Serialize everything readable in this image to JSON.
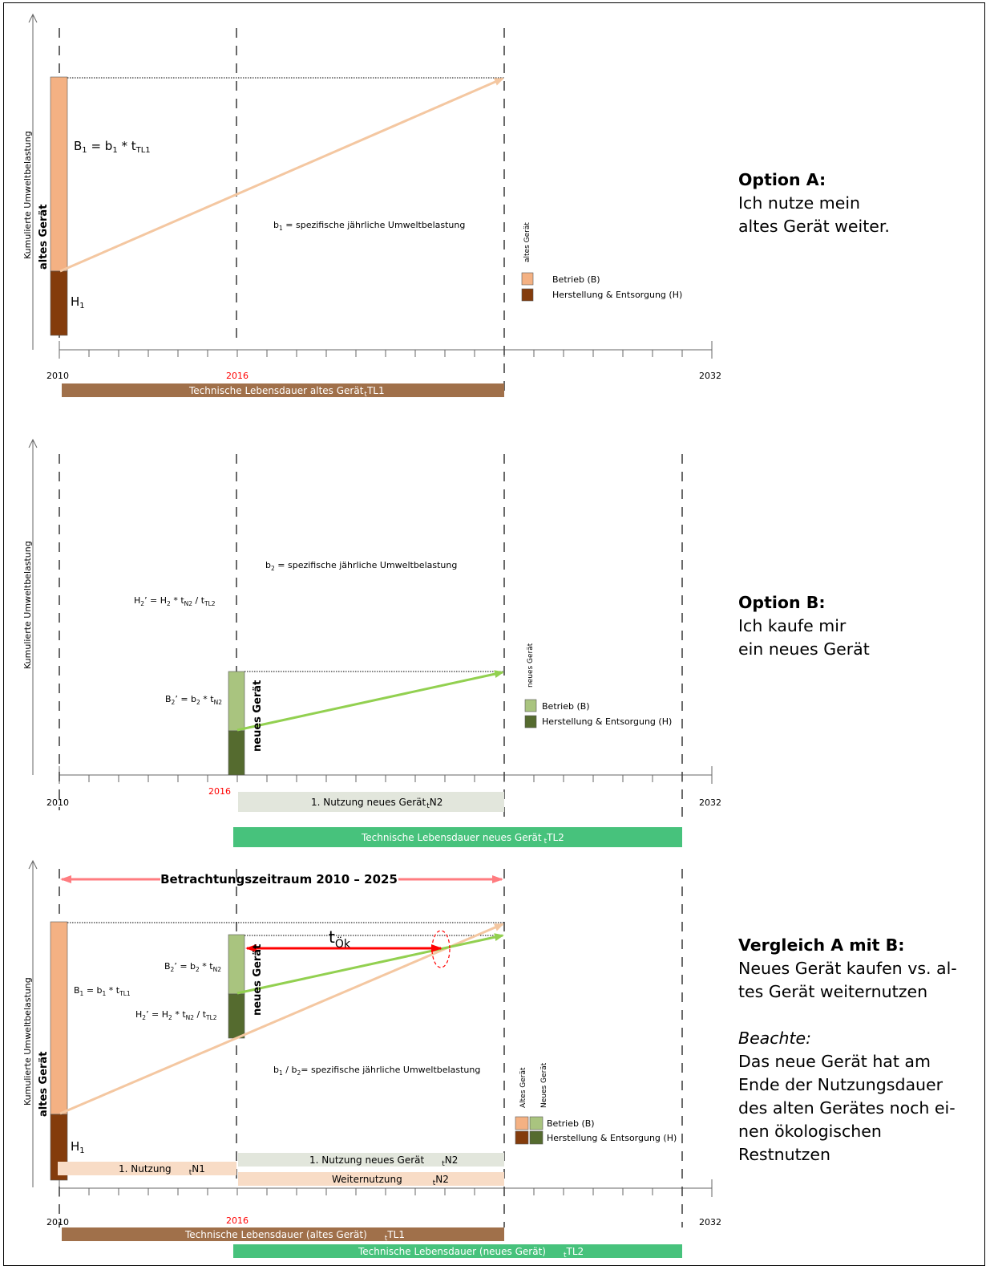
{
  "panel_a": {
    "y_axis_label": "Kumulierte Umweltbelastung",
    "device_label": "altes Gerät",
    "B1": [
      "B",
      "1",
      " = b",
      "1",
      " * t",
      "TL1"
    ],
    "H1": [
      "H",
      "1"
    ],
    "b1_text": [
      "b",
      "1",
      " = spezifische jährliche Umweltbelastung"
    ],
    "legend_header": "altes Gerät",
    "legend_betrieb": "Betrieb (B)",
    "legend_herstellung": "Herstellung & Entsorgung (H)",
    "year_start": "2010",
    "year_mid": "2016",
    "year_end": "2032",
    "bar_lifetime": [
      "Technische Lebensdauer altes Gerät",
      "t",
      "TL1"
    ],
    "side_title": "Option A:",
    "side_lines": [
      "Ich nutze mein",
      "altes Gerät weiter."
    ]
  },
  "panel_b": {
    "y_axis_label": "Kumulierte Umweltbelastung",
    "device_label": "neues Gerät",
    "H2": [
      "H",
      "2",
      "’ = H",
      "2",
      " * t",
      "N2",
      " / t",
      "TL2"
    ],
    "B2": [
      "B",
      "2",
      "’ = b",
      "2",
      " * t",
      "N2"
    ],
    "b2_text": [
      "b",
      "2",
      " = spezifische jährliche Umweltbelastung"
    ],
    "legend_header": "neues Gerät",
    "legend_betrieb": "Betrieb (B)",
    "legend_herstellung": "Herstellung & Entsorgung (H)",
    "year_start": "2010",
    "year_mid": "2016",
    "year_end": "2032",
    "bar_use": [
      "1. Nutzung neues Gerät",
      "t",
      "N2"
    ],
    "bar_lifetime": [
      "Technische Lebensdauer neues Gerät",
      "t",
      "TL2"
    ],
    "side_title": "Option B:",
    "side_lines": [
      "Ich kaufe mir",
      "ein neues Gerät"
    ]
  },
  "panel_c": {
    "y_axis_label": "Kumulierte Umweltbelastung",
    "old_device_label": "altes Gerät",
    "new_device_label": "neues Gerät",
    "period": "Betrachtungszeitraum 2010 – 2025",
    "t_oek": [
      "t",
      "Ök"
    ],
    "B2": [
      "B",
      "2",
      "’ = b",
      "2",
      " * t",
      "N2"
    ],
    "H2": [
      "H",
      "2",
      "’ = H",
      "2",
      " * t",
      "N2",
      " / t",
      "TL2"
    ],
    "B1": [
      "B",
      "1",
      " = b",
      "1",
      " * t",
      "TL1"
    ],
    "H1": [
      "H",
      "1"
    ],
    "b_text": [
      "b",
      "1",
      " / b",
      "2",
      "= spezifische jährliche Umweltbelastung"
    ],
    "legend_header_old": "Altes Gerät",
    "legend_header_new": "Neues Gerät",
    "legend_betrieb": "Betrieb (B)",
    "legend_herstellung": "Herstellung & Entsorgung (H)",
    "bar_first_use": [
      "1. Nutzung",
      "t",
      "N1"
    ],
    "bar_new_use": [
      "1. Nutzung neues Gerät",
      "t",
      "N2"
    ],
    "bar_continued": [
      "Weiternutzung",
      "t",
      "N2"
    ],
    "bar_lifetime_old": [
      "Technische Lebensdauer (altes Gerät)",
      "t",
      "TL1"
    ],
    "bar_lifetime_new": [
      "Technische Lebensdauer (neues Gerät)",
      "t",
      "TL2"
    ],
    "year_start": "2010",
    "year_mid": "2016",
    "year_end": "2032",
    "side_title": "Vergleich A mit B:",
    "side_lines": [
      "Neues Gerät kaufen vs. al-",
      "tes Gerät weiternutzen"
    ],
    "side_note_title": "Beachte:",
    "side_note_lines": [
      "Das neue Gerät hat am",
      "Ende der Nutzungsdauer",
      "des alten Gerätes noch ei-",
      "nen ökologischen",
      "Restnutzen"
    ]
  },
  "colors": {
    "betrieb_old": "#f4b183",
    "herstellung_old": "#843c0c",
    "betrieb_new": "#a9c47f",
    "herstellung_new": "#556b2f",
    "arrow_old": "#f4c7a1",
    "arrow_new": "#92d050",
    "lifetime_old_bar": "#a0704a",
    "lifetime_new_bar": "#47c27c",
    "use_new_bar": "#e2e6dc",
    "use_old_bar": "#f8dcc6",
    "period_arrow": "#ff7c80",
    "t_oek_arrow": "#ff0000",
    "year_mid": "#ff0000"
  }
}
